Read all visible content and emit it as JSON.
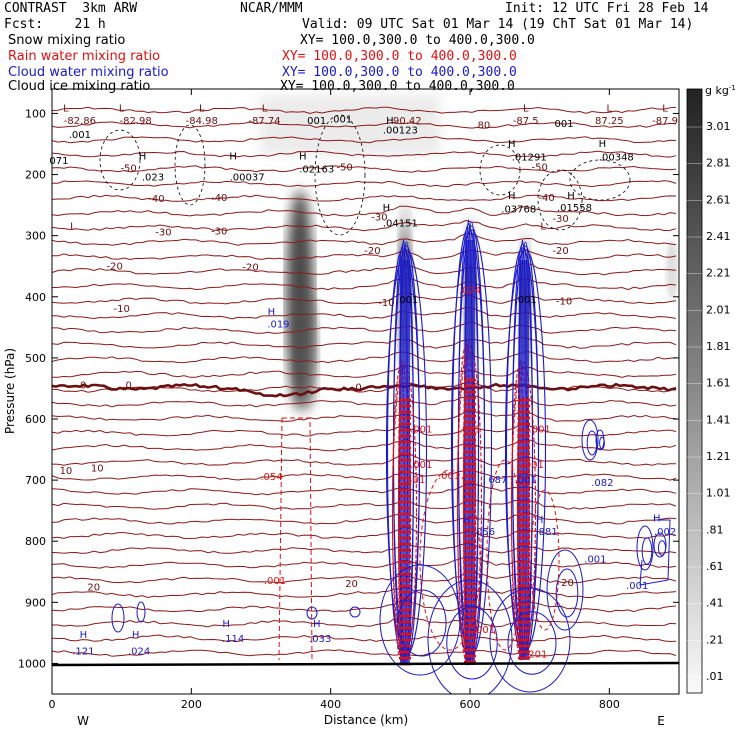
{
  "header": {
    "model": "CONTRAST  3km ARW",
    "org": "NCAR/MMM",
    "init": "Init: 12 UTC Fri 28 Feb 14",
    "fcst": "Fcst:    21 h",
    "valid": "Valid: 09 UTC Sat 01 Mar 14 (19 ChT Sat 01 Mar 14)",
    "fields": [
      {
        "name": "Snow mixing ratio",
        "xy": "XY= 100.0,300.0 to 400.0,300.0",
        "color": "#000000"
      },
      {
        "name": "Rain water mixing ratio",
        "xy": "XY= 100.0,300.0 to 400.0,300.0",
        "color": "#e01010"
      },
      {
        "name": "Cloud water mixing ratio",
        "xy": "XY= 100.0,300.0 to 400.0,300.0",
        "color": "#1a1acc"
      },
      {
        "name": "Cloud ice mixing ratio",
        "xy": "XY= 100.0,300.0 to 400.0,300.0",
        "color": "#000000"
      }
    ]
  },
  "chart_data": {
    "type": "heatmap",
    "xlabel": "Distance (km)",
    "ylabel": "Pressure (hPa)",
    "xlim": [
      0,
      900
    ],
    "ylim": [
      1050,
      60
    ],
    "x_ticks": [
      0,
      200,
      400,
      600,
      800
    ],
    "y_ticks": [
      100,
      200,
      300,
      400,
      500,
      600,
      700,
      800,
      900,
      1000
    ],
    "x_end_labels": {
      "left": "W",
      "right": "E"
    },
    "colorbar": {
      "unit": "g kg",
      "unit_exp": "-1",
      "labels": [
        "3.01",
        "2.81",
        "2.61",
        "2.41",
        "2.21",
        "2.01",
        "1.81",
        "1.61",
        "1.41",
        "1.21",
        "1.01",
        ".81",
        ".61",
        ".41",
        ".21",
        ".01"
      ]
    },
    "temperature_labels": [
      {
        "text": "-82.86",
        "x": 40,
        "p": 117
      },
      {
        "text": "-82.98",
        "x": 120,
        "p": 117
      },
      {
        "text": "-84.98",
        "x": 215,
        "p": 117
      },
      {
        "text": "-87.74",
        "x": 305,
        "p": 117
      },
      {
        "text": "90.42",
        "x": 510,
        "p": 117
      },
      {
        "text": "-87.5",
        "x": 680,
        "p": 117
      },
      {
        "text": "87.25",
        "x": 800,
        "p": 117
      },
      {
        "text": "-87.9",
        "x": 880,
        "p": 117
      },
      {
        "text": "-50",
        "x": 110,
        "p": 195
      },
      {
        "text": "-50",
        "x": 420,
        "p": 193
      },
      {
        "text": "-50",
        "x": 700,
        "p": 193
      },
      {
        "text": "-40",
        "x": 150,
        "p": 245
      },
      {
        "text": "-40",
        "x": 240,
        "p": 243
      },
      {
        "text": "-40",
        "x": 710,
        "p": 243
      },
      {
        "text": "-30",
        "x": 160,
        "p": 300
      },
      {
        "text": "-30",
        "x": 240,
        "p": 298
      },
      {
        "text": "-30",
        "x": 470,
        "p": 275
      },
      {
        "text": "-30",
        "x": 730,
        "p": 278
      },
      {
        "text": "-20",
        "x": 90,
        "p": 355
      },
      {
        "text": "-20",
        "x": 285,
        "p": 357
      },
      {
        "text": "-20",
        "x": 460,
        "p": 330
      },
      {
        "text": "-20",
        "x": 730,
        "p": 330
      },
      {
        "text": "-10",
        "x": 100,
        "p": 425
      },
      {
        "text": "-10",
        "x": 480,
        "p": 415
      },
      {
        "text": "-10",
        "x": 735,
        "p": 413
      },
      {
        "text": "0",
        "x": 45,
        "p": 550
      },
      {
        "text": "0",
        "x": 110,
        "p": 550
      },
      {
        "text": "0",
        "x": 440,
        "p": 553
      },
      {
        "text": "10",
        "x": 20,
        "p": 690
      },
      {
        "text": "10",
        "x": 65,
        "p": 686
      },
      {
        "text": "20",
        "x": 60,
        "p": 881
      },
      {
        "text": "20",
        "x": 430,
        "p": 875
      },
      {
        "text": "20",
        "x": 740,
        "p": 873
      }
    ],
    "extrema_labels": [
      {
        "text": "L",
        "x": 20,
        "p": 97,
        "color": "#6b1010"
      },
      {
        "text": "L",
        "x": 100,
        "p": 97,
        "color": "#6b1010"
      },
      {
        "text": "L",
        "x": 215,
        "p": 97,
        "color": "#6b1010"
      },
      {
        "text": "L",
        "x": 305,
        "p": 97,
        "color": "#6b1010"
      },
      {
        "text": "L",
        "x": 680,
        "p": 97,
        "color": "#6b1010"
      },
      {
        "text": "L",
        "x": 800,
        "p": 97,
        "color": "#6b1010"
      },
      {
        "text": "L",
        "x": 880,
        "p": 97,
        "color": "#6b1010"
      },
      {
        "text": "L",
        "x": 30,
        "p": 290,
        "color": "#6b1010"
      },
      {
        "text": "L",
        "x": 705,
        "p": 290,
        "color": "#6b1010"
      },
      {
        "text": "H",
        "x": 485,
        "p": 117,
        "color": "#000000"
      },
      {
        "text": "H",
        "x": 130,
        "p": 175,
        "color": "#000000"
      },
      {
        "text": "H",
        "x": 260,
        "p": 175,
        "color": "#000000"
      },
      {
        "text": "H",
        "x": 360,
        "p": 175,
        "color": "#000000"
      },
      {
        "text": "H",
        "x": 660,
        "p": 155,
        "color": "#000000"
      },
      {
        "text": "H",
        "x": 790,
        "p": 155,
        "color": "#000000"
      },
      {
        "text": "H",
        "x": 660,
        "p": 240,
        "color": "#000000"
      },
      {
        "text": "H",
        "x": 745,
        "p": 240,
        "color": "#000000"
      },
      {
        "text": "H",
        "x": 480,
        "p": 260,
        "color": "#000000"
      },
      {
        "text": "H",
        "x": 315,
        "p": 430,
        "color": "#1a1acc"
      },
      {
        "text": "H",
        "x": 45,
        "p": 958,
        "color": "#1a1acc"
      },
      {
        "text": "H",
        "x": 120,
        "p": 958,
        "color": "#1a1acc"
      },
      {
        "text": "H",
        "x": 250,
        "p": 940,
        "color": "#1a1acc"
      },
      {
        "text": "H",
        "x": 380,
        "p": 940,
        "color": "#1a1acc"
      },
      {
        "text": "H",
        "x": 595,
        "p": 770,
        "color": "#1a1acc"
      },
      {
        "text": "H",
        "x": 700,
        "p": 770,
        "color": "#1a1acc"
      },
      {
        "text": "H",
        "x": 868,
        "p": 768,
        "color": "#1a1acc"
      }
    ],
    "value_labels": [
      {
        "text": ".001",
        "x": 40,
        "p": 140,
        "color": "#000000"
      },
      {
        "text": "001",
        "x": 380,
        "p": 117,
        "color": "#000000"
      },
      {
        "text": ".001",
        "x": 415,
        "p": 115,
        "color": "#000000"
      },
      {
        "text": ".00123",
        "x": 500,
        "p": 133,
        "color": "#000000"
      },
      {
        "text": "80",
        "x": 620,
        "p": 125,
        "color": "#6b1010"
      },
      {
        "text": "001",
        "x": 735,
        "p": 122,
        "color": "#000000"
      },
      {
        "text": ".01291",
        "x": 685,
        "p": 177,
        "color": "#000000"
      },
      {
        "text": ".00348",
        "x": 810,
        "p": 177,
        "color": "#000000"
      },
      {
        "text": "071",
        "x": 10,
        "p": 183,
        "color": "#000000"
      },
      {
        "text": ".023",
        "x": 145,
        "p": 210,
        "color": "#000000"
      },
      {
        "text": ".00037",
        "x": 280,
        "p": 210,
        "color": "#000000"
      },
      {
        "text": ".02163",
        "x": 380,
        "p": 197,
        "color": "#000000"
      },
      {
        "text": ".03768",
        "x": 670,
        "p": 262,
        "color": "#000000"
      },
      {
        "text": ".01558",
        "x": 750,
        "p": 260,
        "color": "#000000"
      },
      {
        "text": ".04151",
        "x": 500,
        "p": 285,
        "color": "#000000"
      },
      {
        "text": ".001",
        "x": 510,
        "p": 410,
        "color": "#000000"
      },
      {
        "text": ".001",
        "x": 680,
        "p": 410,
        "color": "#000000"
      },
      {
        "text": ".024",
        "x": 600,
        "p": 395,
        "color": "#e01010"
      },
      {
        "text": ".019",
        "x": 325,
        "p": 450,
        "color": "#1a1acc"
      },
      {
        "text": ".001",
        "x": 530,
        "p": 622,
        "color": "#e01010"
      },
      {
        "text": ".001",
        "x": 600,
        "p": 622,
        "color": "#e01010"
      },
      {
        "text": ".001",
        "x": 700,
        "p": 622,
        "color": "#e01010"
      },
      {
        "text": ".001",
        "x": 530,
        "p": 680,
        "color": "#e01010"
      },
      {
        "text": ".001",
        "x": 690,
        "p": 680,
        "color": "#e01010"
      },
      {
        "text": ".054",
        "x": 315,
        "p": 700,
        "color": "#e01010"
      },
      {
        "text": ".401",
        "x": 520,
        "p": 705,
        "color": "#e01010"
      },
      {
        "text": ".001",
        "x": 570,
        "p": 698,
        "color": "#e01010"
      },
      {
        "text": ".001",
        "x": 680,
        "p": 705,
        "color": "#1a1acc"
      },
      {
        "text": "687",
        "x": 640,
        "p": 705,
        "color": "#1a1acc"
      },
      {
        "text": ".082",
        "x": 790,
        "p": 710,
        "color": "#1a1acc"
      },
      {
        "text": ".056",
        "x": 620,
        "p": 790,
        "color": "#1a1acc"
      },
      {
        "text": ".881",
        "x": 710,
        "p": 790,
        "color": "#1a1acc"
      },
      {
        "text": ".001",
        "x": 780,
        "p": 835,
        "color": "#1a1acc"
      },
      {
        "text": ".002",
        "x": 880,
        "p": 790,
        "color": "#1a1acc"
      },
      {
        "text": ".001",
        "x": 840,
        "p": 878,
        "color": "#1a1acc"
      },
      {
        "text": ".001",
        "x": 320,
        "p": 870,
        "color": "#e01010"
      },
      {
        "text": ".121",
        "x": 45,
        "p": 985,
        "color": "#1a1acc"
      },
      {
        "text": ".024",
        "x": 125,
        "p": 985,
        "color": "#1a1acc"
      },
      {
        "text": ".114",
        "x": 260,
        "p": 965,
        "color": "#1a1acc"
      },
      {
        "text": ".033",
        "x": 385,
        "p": 965,
        "color": "#1a1acc"
      },
      {
        "text": ".001",
        "x": 620,
        "p": 950,
        "color": "#e01010"
      },
      {
        "text": ".201",
        "x": 695,
        "p": 990,
        "color": "#e01010"
      }
    ]
  }
}
